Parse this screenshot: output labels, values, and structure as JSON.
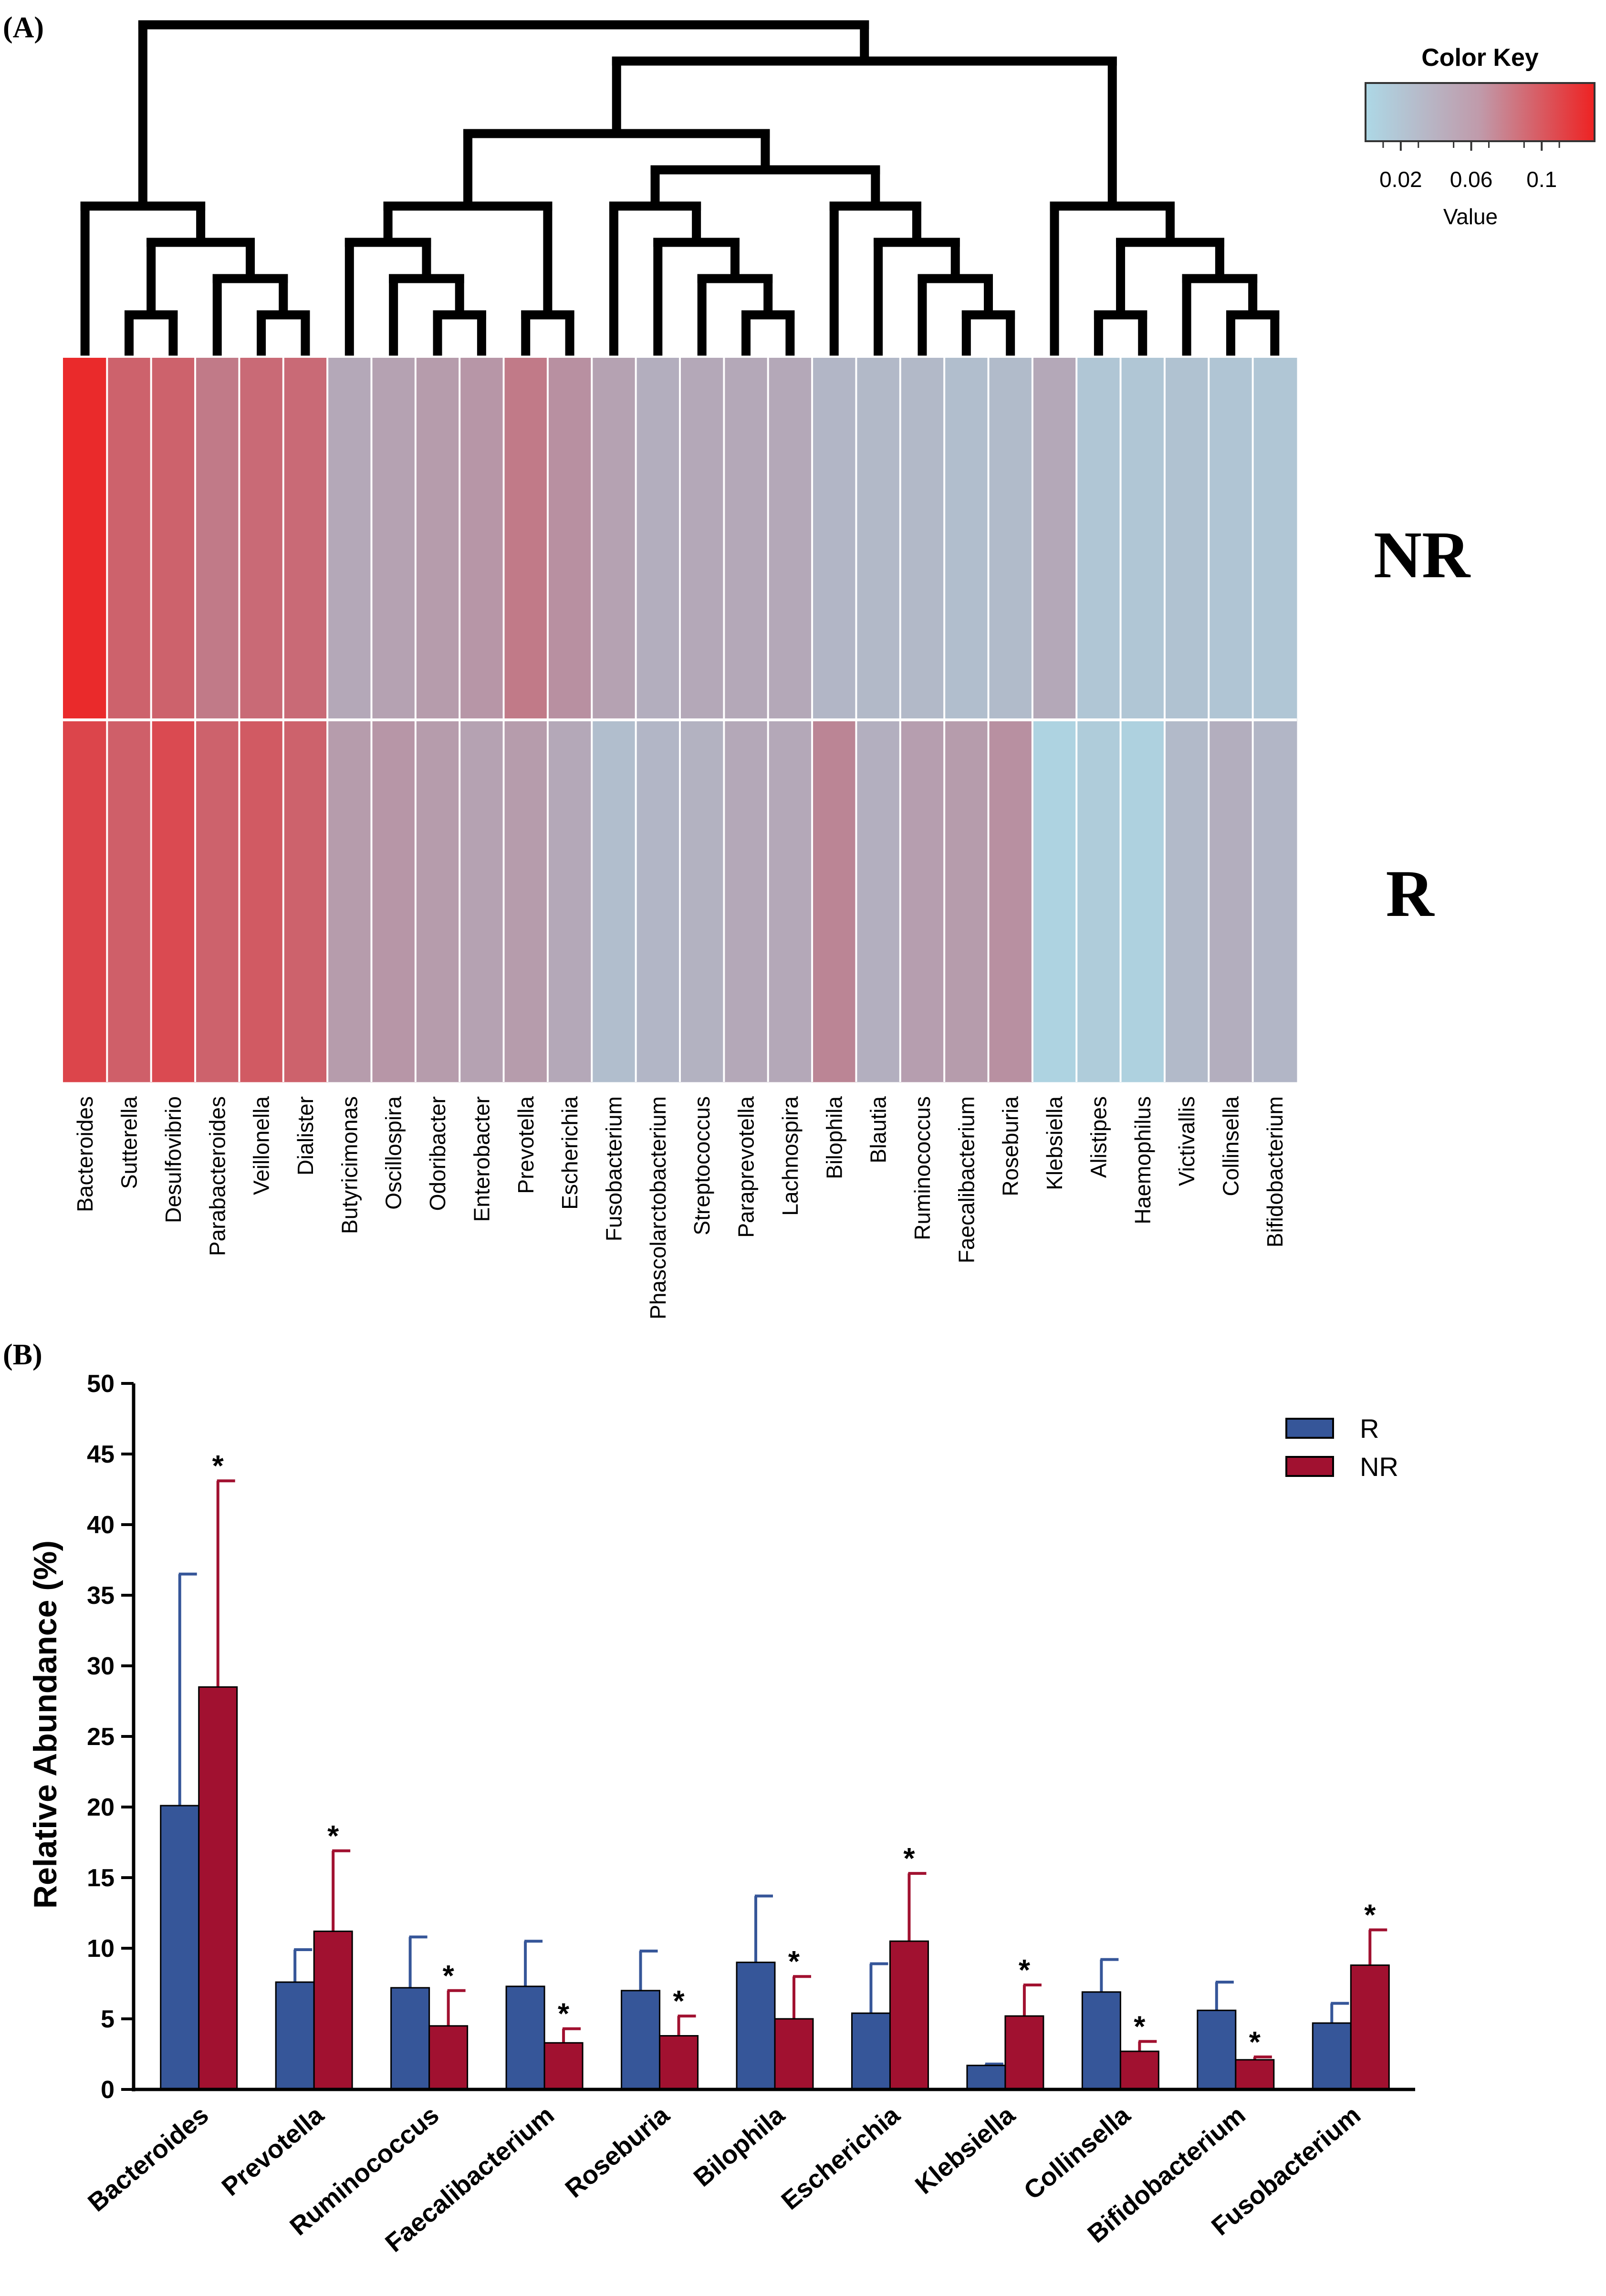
{
  "panel_a_label": "(A)",
  "panel_b_label": "(B)",
  "chart_data": [
    {
      "type": "heatmap",
      "color_key": {
        "title": "Color Key",
        "value_label": "Value",
        "tick_labels": [
          "0.02",
          "0.06",
          "0.1"
        ],
        "low_color": "#add8e6",
        "mid_color": "#b98a9b",
        "high_color": "#ee2222",
        "range": [
          0.0,
          0.13
        ]
      },
      "rows": [
        "NR",
        "R"
      ],
      "columns": [
        "Bacteroides",
        "Sutterella",
        "Desulfovibrio",
        "Parabacteroides",
        "Veillonella",
        "Dialister",
        "Butyricimonas",
        "Oscillospira",
        "Odoribacter",
        "Enterobacter",
        "Prevotella",
        "Escherichia",
        "Fusobacterium",
        "Phascolarctobacterium",
        "Streptococcus",
        "Paraprevotella",
        "Lachnospira",
        "Bilophila",
        "Blautia",
        "Ruminococcus",
        "Faecalibacterium",
        "Roseburia",
        "Klebsiella",
        "Alistipes",
        "Haemophilus",
        "Victivallis",
        "Collinsella",
        "Bifidobacterium"
      ],
      "values": [
        [
          0.125,
          0.09,
          0.09,
          0.075,
          0.085,
          0.085,
          0.04,
          0.045,
          0.05,
          0.055,
          0.075,
          0.06,
          0.045,
          0.035,
          0.04,
          0.04,
          0.04,
          0.028,
          0.026,
          0.026,
          0.022,
          0.024,
          0.04,
          0.015,
          0.015,
          0.018,
          0.016,
          0.015
        ],
        [
          0.108,
          0.092,
          0.105,
          0.09,
          0.095,
          0.09,
          0.05,
          0.055,
          0.05,
          0.045,
          0.05,
          0.04,
          0.022,
          0.028,
          0.032,
          0.04,
          0.04,
          0.068,
          0.034,
          0.048,
          0.05,
          0.06,
          0.004,
          0.01,
          0.006,
          0.025,
          0.035,
          0.028
        ]
      ]
    },
    {
      "type": "bar",
      "ylabel": "Relative Abundance (%)",
      "ylim": [
        0,
        50
      ],
      "yticks": [
        "0",
        "5",
        "10",
        "15",
        "20",
        "25",
        "30",
        "35",
        "40",
        "45",
        "50"
      ],
      "legend_position": "top-right",
      "significance_marker": "*",
      "categories": [
        "Bacteroides",
        "Prevotella",
        "Ruminococcus",
        "Faecalibacterium",
        "Roseburia",
        "Bilophila",
        "Escherichia",
        "Klebsiella",
        "Collinsella",
        "Bifidobacterium",
        "Fusobacterium"
      ],
      "series": [
        {
          "name": "R",
          "color": "#365699",
          "values": [
            20.1,
            7.6,
            7.2,
            7.3,
            7.0,
            9.0,
            5.4,
            1.7,
            6.9,
            5.6,
            4.7
          ],
          "errors": [
            16.4,
            2.3,
            3.6,
            3.2,
            2.8,
            4.7,
            3.5,
            0.1,
            2.3,
            2.0,
            1.4
          ]
        },
        {
          "name": "NR",
          "color": "#a11130",
          "values": [
            28.5,
            11.2,
            4.5,
            3.3,
            3.8,
            5.0,
            10.5,
            5.2,
            2.7,
            2.1,
            8.8
          ],
          "errors": [
            14.6,
            5.7,
            2.5,
            1.0,
            1.4,
            3.0,
            4.8,
            2.2,
            0.7,
            0.2,
            2.5
          ]
        }
      ],
      "significant": [
        true,
        true,
        true,
        true,
        true,
        true,
        true,
        true,
        true,
        true,
        true
      ]
    }
  ]
}
